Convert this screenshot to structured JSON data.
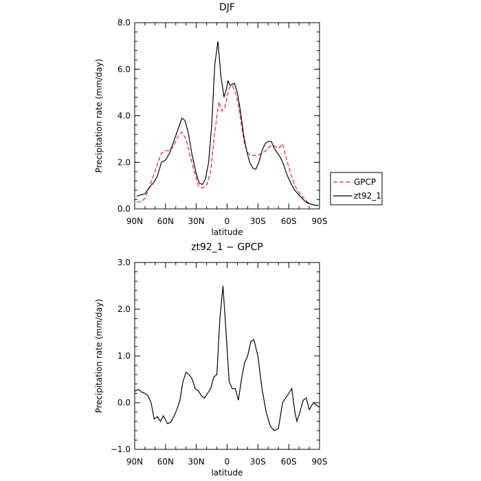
{
  "chart_data": [
    {
      "type": "line",
      "title": "DJF",
      "xlabel": "latitude",
      "ylabel": "Precipitation rate  (mm/day)",
      "xlim": [
        90,
        -90
      ],
      "ylim": [
        0,
        8
      ],
      "x_ticks": [
        90,
        60,
        30,
        0,
        -30,
        -60,
        -90
      ],
      "x_tick_labels": [
        "90N",
        "60N",
        "30N",
        "0",
        "30S",
        "60S",
        "90S"
      ],
      "y_ticks": [
        0,
        2,
        4,
        6,
        8
      ],
      "y_tick_labels": [
        "0.0",
        "2.0",
        "4.0",
        "6.0",
        "8.0"
      ],
      "grid": false,
      "legend": "right",
      "series": [
        {
          "name": "GPCP",
          "color": "#e8201c",
          "dash": "dashed",
          "x": [
            88,
            84,
            80,
            76,
            72,
            68,
            64,
            60,
            56,
            52,
            48,
            44,
            40,
            36,
            32,
            28,
            24,
            20,
            16,
            12,
            8,
            5,
            2,
            0,
            -2,
            -5,
            -8,
            -11,
            -14,
            -17,
            -20,
            -23,
            -26,
            -30,
            -34,
            -38,
            -42,
            -46,
            -50,
            -54,
            -58,
            -62,
            -66,
            -70,
            -74,
            -78,
            -82,
            -86,
            -89
          ],
          "y": [
            0.3,
            0.3,
            0.45,
            0.9,
            1.4,
            1.9,
            2.4,
            2.5,
            2.5,
            2.7,
            3.1,
            3.3,
            3.0,
            2.3,
            1.6,
            1.0,
            0.9,
            1.0,
            1.6,
            3.3,
            4.6,
            4.2,
            4.4,
            4.8,
            5.2,
            5.3,
            5.0,
            4.5,
            3.6,
            2.8,
            2.4,
            2.3,
            2.3,
            2.3,
            2.4,
            2.5,
            2.7,
            2.7,
            2.6,
            2.8,
            2.1,
            1.5,
            1.0,
            0.7,
            0.5,
            0.3,
            0.2,
            0.15,
            0.15
          ]
        },
        {
          "name": "zt92_1",
          "color": "#000000",
          "dash": "solid",
          "x": [
            88,
            84,
            80,
            76,
            72,
            68,
            64,
            60,
            56,
            52,
            48,
            44,
            41,
            38,
            34,
            30,
            27,
            24,
            21,
            18,
            15,
            12,
            9,
            6,
            3,
            1,
            -1,
            -3,
            -5,
            -7,
            -10,
            -13,
            -16,
            -19,
            -22,
            -25,
            -28,
            -31,
            -34,
            -37,
            -40,
            -43,
            -46,
            -49,
            -52,
            -55,
            -58,
            -62,
            -66,
            -70,
            -74,
            -78,
            -82,
            -86,
            -89
          ],
          "y": [
            0.55,
            0.6,
            0.65,
            0.9,
            1.1,
            1.4,
            2.0,
            2.1,
            2.4,
            2.9,
            3.4,
            3.9,
            3.8,
            3.3,
            2.3,
            1.5,
            1.1,
            1.05,
            1.3,
            2.0,
            3.6,
            6.2,
            7.2,
            5.7,
            4.8,
            5.1,
            5.5,
            5.3,
            5.35,
            5.4,
            5.0,
            4.2,
            3.2,
            2.5,
            2.0,
            1.75,
            1.7,
            2.0,
            2.5,
            2.8,
            2.9,
            2.9,
            2.6,
            2.4,
            2.2,
            1.9,
            1.5,
            1.1,
            0.8,
            0.6,
            0.4,
            0.25,
            0.2,
            0.15,
            0.15
          ]
        }
      ]
    },
    {
      "type": "line",
      "title": "zt92_1  −  GPCP",
      "xlabel": "latitude",
      "ylabel": "Precipitation rate  (mm/day)",
      "xlim": [
        90,
        -90
      ],
      "ylim": [
        -1,
        3
      ],
      "x_ticks": [
        90,
        60,
        30,
        0,
        -30,
        -60,
        -90
      ],
      "x_tick_labels": [
        "90N",
        "60N",
        "30N",
        "0",
        "30S",
        "60S",
        "90S"
      ],
      "y_ticks": [
        -1,
        0,
        1,
        2,
        3
      ],
      "y_tick_labels": [
        "−1.0",
        "0.0",
        "1.0",
        "2.0",
        "3.0"
      ],
      "grid": false,
      "series": [
        {
          "color": "#000000",
          "dash": "solid",
          "x": [
            90,
            86,
            83,
            80,
            77,
            74,
            71,
            68,
            65,
            62,
            58,
            55,
            52,
            49,
            46,
            43,
            40,
            37,
            34,
            31,
            28,
            25,
            22,
            19,
            16,
            13,
            10,
            7,
            4,
            1,
            -2,
            -5,
            -8,
            -11,
            -14,
            -17,
            -20,
            -23,
            -26,
            -30,
            -34,
            -38,
            -42,
            -46,
            -50,
            -54,
            -57,
            -60,
            -63,
            -66,
            -68,
            -71,
            -74,
            -77,
            -80,
            -84,
            -87,
            -90
          ],
          "y": [
            0.25,
            0.28,
            0.22,
            0.2,
            0.15,
            0.0,
            -0.35,
            -0.3,
            -0.4,
            -0.28,
            -0.45,
            -0.42,
            -0.3,
            -0.15,
            0.05,
            0.45,
            0.65,
            0.6,
            0.5,
            0.3,
            0.25,
            0.15,
            0.1,
            0.2,
            0.3,
            0.55,
            0.6,
            1.8,
            2.5,
            1.5,
            0.45,
            0.3,
            0.3,
            0.05,
            0.5,
            0.85,
            1.0,
            1.3,
            1.35,
            1.0,
            0.3,
            -0.2,
            -0.5,
            -0.6,
            -0.55,
            0.0,
            0.1,
            0.2,
            0.3,
            -0.2,
            -0.4,
            -0.2,
            0.05,
            0.1,
            -0.15,
            0.0,
            -0.05,
            -0.1
          ]
        }
      ]
    }
  ]
}
